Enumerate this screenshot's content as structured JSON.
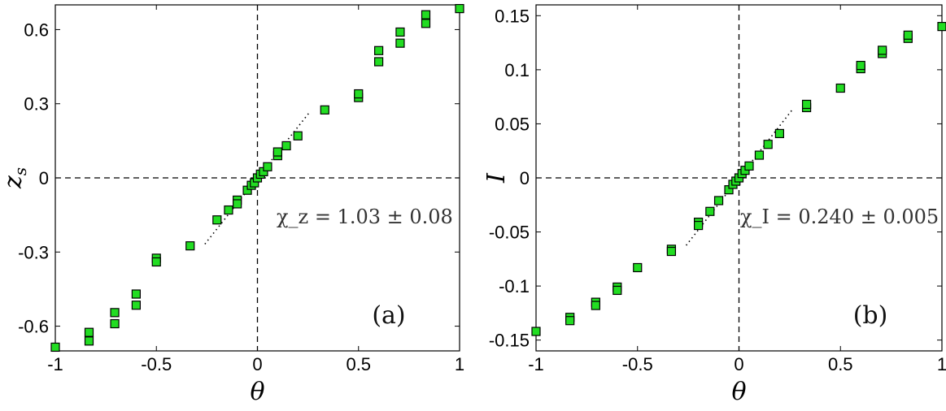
{
  "chart_data": [
    {
      "type": "scatter",
      "panel_label": "(a)",
      "xlabel": "θ",
      "ylabel": "z_s",
      "xlim": [
        -1,
        1
      ],
      "ylim": [
        -0.7,
        0.7
      ],
      "xticks": [
        -1,
        -0.5,
        0,
        0.5,
        1
      ],
      "xtick_labels": [
        "-1",
        "-0.5",
        "0",
        "0.5",
        "1"
      ],
      "yticks": [
        -0.6,
        -0.3,
        0,
        0.3,
        0.6
      ],
      "ytick_labels": [
        "-0.6",
        "-0.3",
        "0",
        "0.3",
        "0.6"
      ],
      "annotation": "χ_z = 1.03 ± 0.08",
      "marker_color": "#22dd22",
      "marker_edge": "#000000",
      "grid": false,
      "points": [
        [
          -1.0,
          -0.685
        ],
        [
          -0.833,
          -0.625
        ],
        [
          -0.833,
          -0.66
        ],
        [
          -0.706,
          -0.545
        ],
        [
          -0.706,
          -0.59
        ],
        [
          -0.6,
          -0.47
        ],
        [
          -0.6,
          -0.515
        ],
        [
          -0.5,
          -0.325
        ],
        [
          -0.5,
          -0.34
        ],
        [
          -0.333,
          -0.275
        ],
        [
          -0.2,
          -0.17
        ],
        [
          -0.143,
          -0.13
        ],
        [
          -0.1,
          -0.09
        ],
        [
          -0.1,
          -0.105
        ],
        [
          -0.05,
          -0.05
        ],
        [
          -0.03,
          -0.03
        ],
        [
          -0.015,
          -0.02
        ],
        [
          0.0,
          0.0
        ],
        [
          0.015,
          0.015
        ],
        [
          0.03,
          0.025
        ],
        [
          0.05,
          0.045
        ],
        [
          0.1,
          0.09
        ],
        [
          0.1,
          0.105
        ],
        [
          0.143,
          0.13
        ],
        [
          0.2,
          0.17
        ],
        [
          0.333,
          0.275
        ],
        [
          0.5,
          0.325
        ],
        [
          0.5,
          0.34
        ],
        [
          0.6,
          0.47
        ],
        [
          0.6,
          0.515
        ],
        [
          0.706,
          0.545
        ],
        [
          0.706,
          0.59
        ],
        [
          0.833,
          0.625
        ],
        [
          0.833,
          0.66
        ],
        [
          1.0,
          0.685
        ]
      ],
      "fit_line": {
        "slope": 1.03,
        "x_range": [
          -0.26,
          0.26
        ]
      },
      "reference_lines": {
        "x": 0,
        "y": 0
      }
    },
    {
      "type": "scatter",
      "panel_label": "(b)",
      "xlabel": "θ",
      "ylabel": "I",
      "xlim": [
        -1,
        1
      ],
      "ylim": [
        -0.16,
        0.16
      ],
      "xticks": [
        -1,
        -0.5,
        0,
        0.5,
        1
      ],
      "xtick_labels": [
        "-1",
        "-0.5",
        "0",
        "0.5",
        "1"
      ],
      "yticks": [
        -0.15,
        -0.1,
        -0.05,
        0,
        0.05,
        0.1,
        0.15
      ],
      "ytick_labels": [
        "-0.15",
        "-0.1",
        "-0.05",
        "0",
        "0.05",
        "0.1",
        "0.15"
      ],
      "annotation": "χ_I = 0.240 ± 0.005",
      "marker_color": "#22dd22",
      "marker_edge": "#000000",
      "grid": false,
      "points": [
        [
          -1.0,
          -0.142
        ],
        [
          -0.833,
          -0.129
        ],
        [
          -0.833,
          -0.132
        ],
        [
          -0.706,
          -0.115
        ],
        [
          -0.706,
          -0.118
        ],
        [
          -0.6,
          -0.101
        ],
        [
          -0.6,
          -0.104
        ],
        [
          -0.5,
          -0.083
        ],
        [
          -0.333,
          -0.066
        ],
        [
          -0.333,
          -0.068
        ],
        [
          -0.2,
          -0.041
        ],
        [
          -0.2,
          -0.044
        ],
        [
          -0.143,
          -0.031
        ],
        [
          -0.1,
          -0.021
        ],
        [
          -0.05,
          -0.011
        ],
        [
          -0.03,
          -0.006
        ],
        [
          -0.015,
          -0.003
        ],
        [
          0.0,
          0.0
        ],
        [
          0.015,
          0.004
        ],
        [
          0.03,
          0.007
        ],
        [
          0.05,
          0.011
        ],
        [
          0.1,
          0.021
        ],
        [
          0.143,
          0.031
        ],
        [
          0.2,
          0.041
        ],
        [
          0.333,
          0.065
        ],
        [
          0.333,
          0.068
        ],
        [
          0.5,
          0.083
        ],
        [
          0.6,
          0.101
        ],
        [
          0.6,
          0.104
        ],
        [
          0.706,
          0.115
        ],
        [
          0.706,
          0.118
        ],
        [
          0.833,
          0.129
        ],
        [
          0.833,
          0.132
        ],
        [
          1.0,
          0.14
        ]
      ],
      "fit_line": {
        "slope": 0.24,
        "x_range": [
          -0.26,
          0.26
        ]
      },
      "reference_lines": {
        "x": 0,
        "y": 0
      }
    }
  ]
}
